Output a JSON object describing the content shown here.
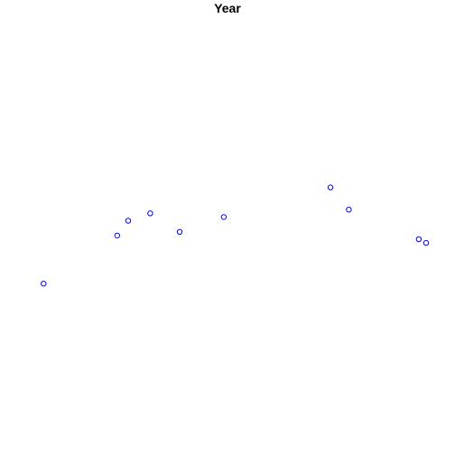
{
  "chart_data": {
    "type": "scatter",
    "title": "Year",
    "xlabel": "",
    "ylabel": "",
    "grid": false,
    "axes_visible": false,
    "marker": "open-circle",
    "marker_color": "#0000ff",
    "xlim": [
      0.6,
      11.4
    ],
    "ylim": [
      0,
      10
    ],
    "series": [
      {
        "x": [
          1,
          3,
          3.3,
          3.9,
          4.7,
          5.9,
          8.8,
          9.3,
          11.2,
          11.4
        ],
        "y": [
          3.8,
          5.1,
          5.5,
          5.7,
          5.2,
          5.6,
          6.4,
          5.8,
          5.0,
          4.9
        ]
      }
    ]
  }
}
